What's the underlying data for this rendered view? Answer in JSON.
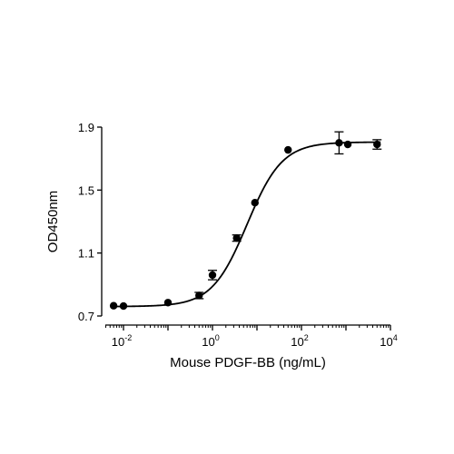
{
  "chart_data": {
    "type": "scatter",
    "title": "",
    "xlabel": "Mouse PDGF-BB (ng/mL)",
    "ylabel": "OD450nm",
    "x_scale": "log10",
    "xlim": [
      0.005,
      10000
    ],
    "ylim": [
      0.7,
      1.9
    ],
    "x_ticks": [
      {
        "base": "10",
        "exp": "-2",
        "value": 0.01
      },
      {
        "base": "10",
        "exp": "0",
        "value": 1
      },
      {
        "base": "10",
        "exp": "2",
        "value": 100
      },
      {
        "base": "10",
        "exp": "4",
        "value": 10000
      }
    ],
    "y_ticks": [
      {
        "label": "0.7",
        "value": 0.7
      },
      {
        "label": "1.1",
        "value": 1.1
      },
      {
        "label": "1.5",
        "value": 1.5
      },
      {
        "label": "1.9",
        "value": 1.9
      }
    ],
    "grid": false,
    "legend": "none",
    "points": [
      {
        "x": 0.006,
        "y": 0.765,
        "err": 0.005
      },
      {
        "x": 0.01,
        "y": 0.763,
        "err": 0.005
      },
      {
        "x": 0.1,
        "y": 0.785,
        "err": 0.005
      },
      {
        "x": 0.5,
        "y": 0.83,
        "err": 0.02
      },
      {
        "x": 1.0,
        "y": 0.96,
        "err": 0.03
      },
      {
        "x": 3.5,
        "y": 1.195,
        "err": 0.02
      },
      {
        "x": 9.0,
        "y": 1.42,
        "err": 0.005
      },
      {
        "x": 50,
        "y": 1.755,
        "err": 0.005
      },
      {
        "x": 700,
        "y": 1.8,
        "err": 0.07
      },
      {
        "x": 1100,
        "y": 1.79,
        "err": 0.005
      },
      {
        "x": 5000,
        "y": 1.79,
        "err": 0.03
      }
    ],
    "fit_curve": {
      "model": "4PL",
      "bottom": 0.76,
      "top": 1.805,
      "ec50": 6.0,
      "hill": 1.1
    },
    "colors": {
      "marker": "#000000",
      "curve": "#000000",
      "axis": "#000000"
    }
  }
}
